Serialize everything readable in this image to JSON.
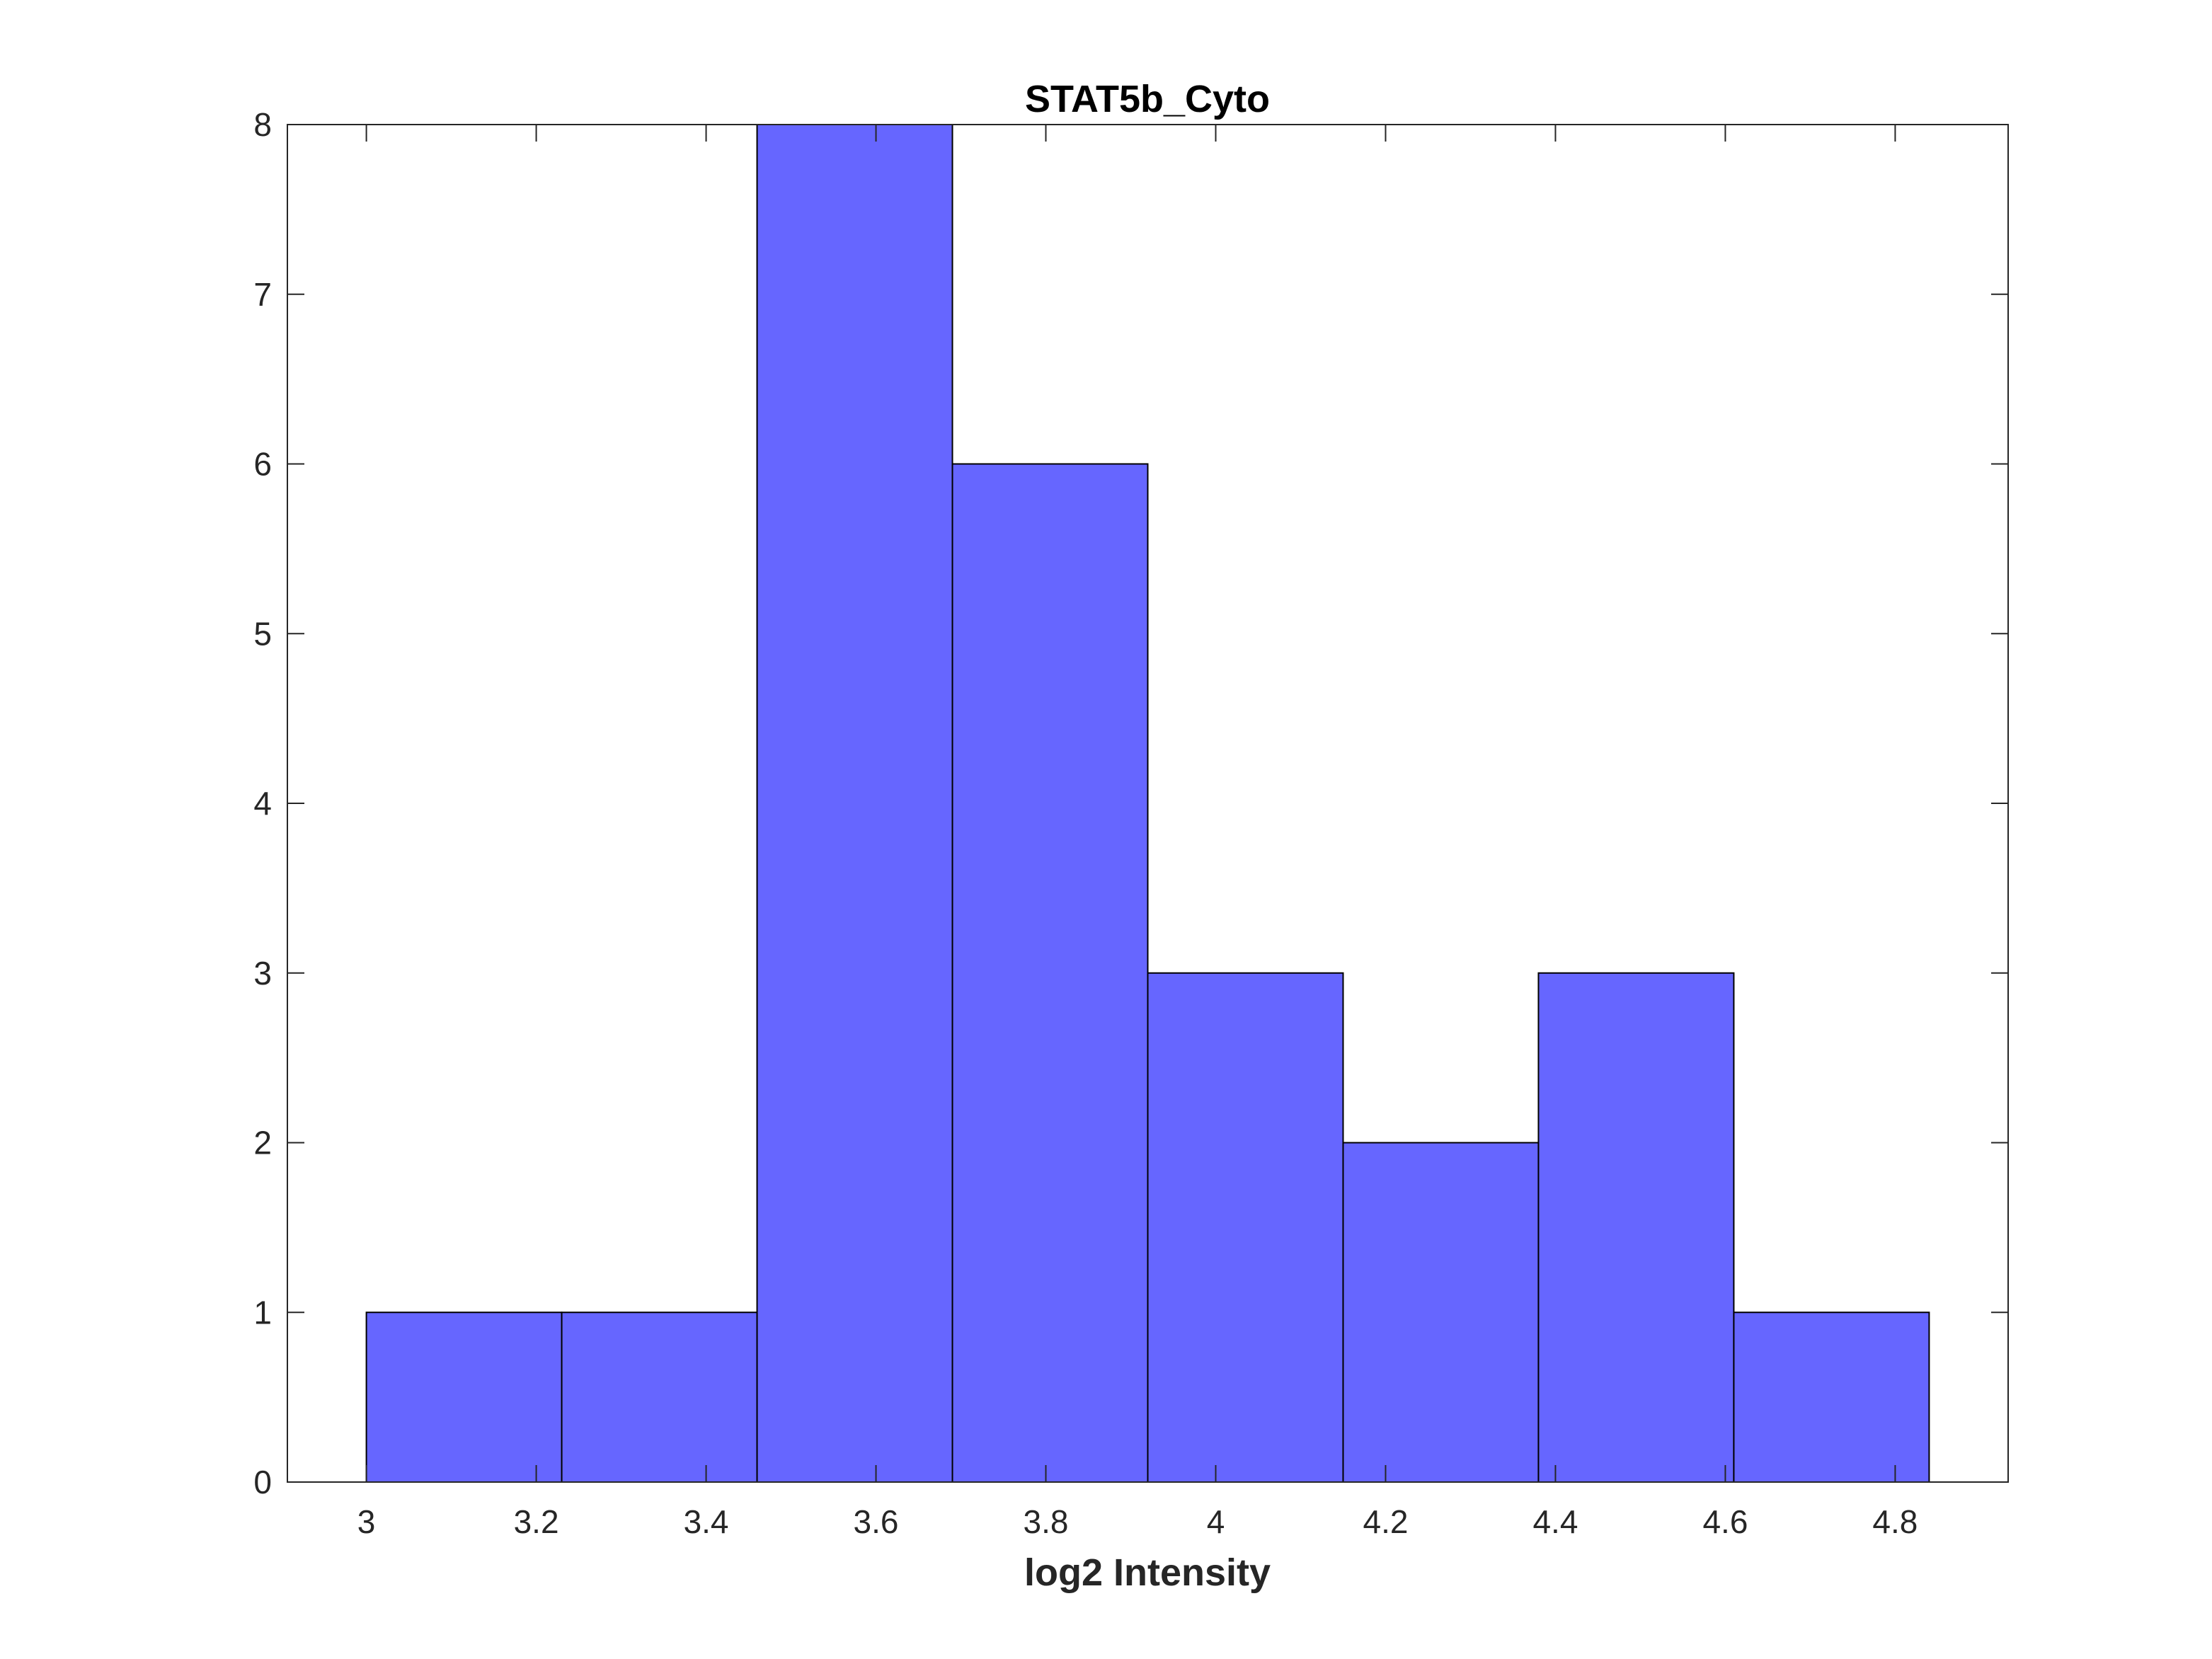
{
  "chart_data": {
    "type": "bar",
    "title": "STAT5b_Cyto",
    "xlabel": "log2 Intensity",
    "ylabel": "",
    "xlim": [
      2.907,
      4.933
    ],
    "ylim": [
      0,
      8
    ],
    "bin_edges": [
      3.0,
      3.23,
      3.46,
      3.69,
      3.92,
      4.15,
      4.38,
      4.61,
      4.84
    ],
    "counts": [
      1,
      1,
      8,
      6,
      3,
      2,
      3,
      1
    ],
    "xticks": [
      3,
      3.2,
      3.4,
      3.6,
      3.8,
      4,
      4.2,
      4.4,
      4.6,
      4.8
    ],
    "xtick_labels": [
      "3",
      "3.2",
      "3.4",
      "3.6",
      "3.8",
      "4",
      "4.2",
      "4.4",
      "4.6",
      "4.8"
    ],
    "yticks": [
      0,
      1,
      2,
      3,
      4,
      5,
      6,
      7,
      8
    ],
    "ytick_labels": [
      "0",
      "1",
      "2",
      "3",
      "4",
      "5",
      "6",
      "7",
      "8"
    ],
    "bar_color": "#6666ff",
    "edge_color": "#000000",
    "grid": false,
    "legend": "none"
  }
}
